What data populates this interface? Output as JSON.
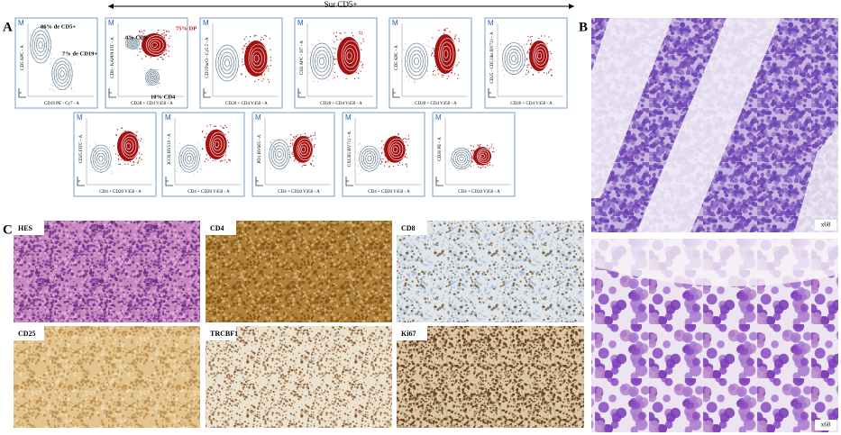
{
  "arrow_label": "Sur CD5+",
  "panels": {
    "a": {
      "label": "A",
      "plots": [
        {
          "marker": "M",
          "y_label": "CD5 APC - A",
          "x_label": "CD19 PE - Cy7 - A",
          "annotations": [
            "86% de CD5+",
            "7% de CD19+"
          ]
        },
        {
          "marker": "M",
          "y_label": "CD8 - KAPPA FIT - A",
          "x_label": "CD28 + CD4 V450 - A",
          "annotations": [
            "4% CD8",
            "75% DP",
            "10% CD4"
          ]
        },
        {
          "marker": "M",
          "y_label": "CD3 PacO - Cy5.5 - A",
          "x_label": "CD20 + CD4 V450 - A"
        },
        {
          "marker": "M",
          "y_label": "CD2 APC - H7 - A",
          "x_label": "CD20 + CD4 V450 - A"
        },
        {
          "marker": "M",
          "y_label": "CD5 APC - A",
          "x_label": "CD20 + CD4 V450 - A"
        },
        {
          "marker": "M",
          "y_label": "CD25 - CD5 like BV711 - A",
          "x_label": "CD20 + CD4 V450 - A"
        },
        {
          "marker": "M",
          "y_label": "CD25 FITC - A",
          "x_label": "CD4 + CD20 V450 - A"
        },
        {
          "marker": "M",
          "y_label": "ICOS BV510 - A",
          "x_label": "CD4 + CD20 V450 - A"
        },
        {
          "marker": "M",
          "y_label": "PD1 BV605 - A",
          "x_label": "CD4 + CD20 V450 - A"
        },
        {
          "marker": "M",
          "y_label": "CXCR5 BV711 - A",
          "x_label": "CD4 + CD20 V450 - A"
        },
        {
          "marker": "M",
          "y_label": "CD30 PE - A",
          "x_label": "CD4 + CD20 V450 - A"
        }
      ]
    },
    "b": {
      "label": "B",
      "images": [
        {
          "magnification": "x60"
        },
        {
          "magnification": "x60"
        }
      ]
    },
    "c": {
      "label": "C",
      "images": [
        {
          "label": "HES"
        },
        {
          "label": "CD4"
        },
        {
          "label": "CD8"
        },
        {
          "label": "CD25"
        },
        {
          "label": "TRCBF1"
        },
        {
          "label": "Ki67"
        }
      ]
    }
  }
}
